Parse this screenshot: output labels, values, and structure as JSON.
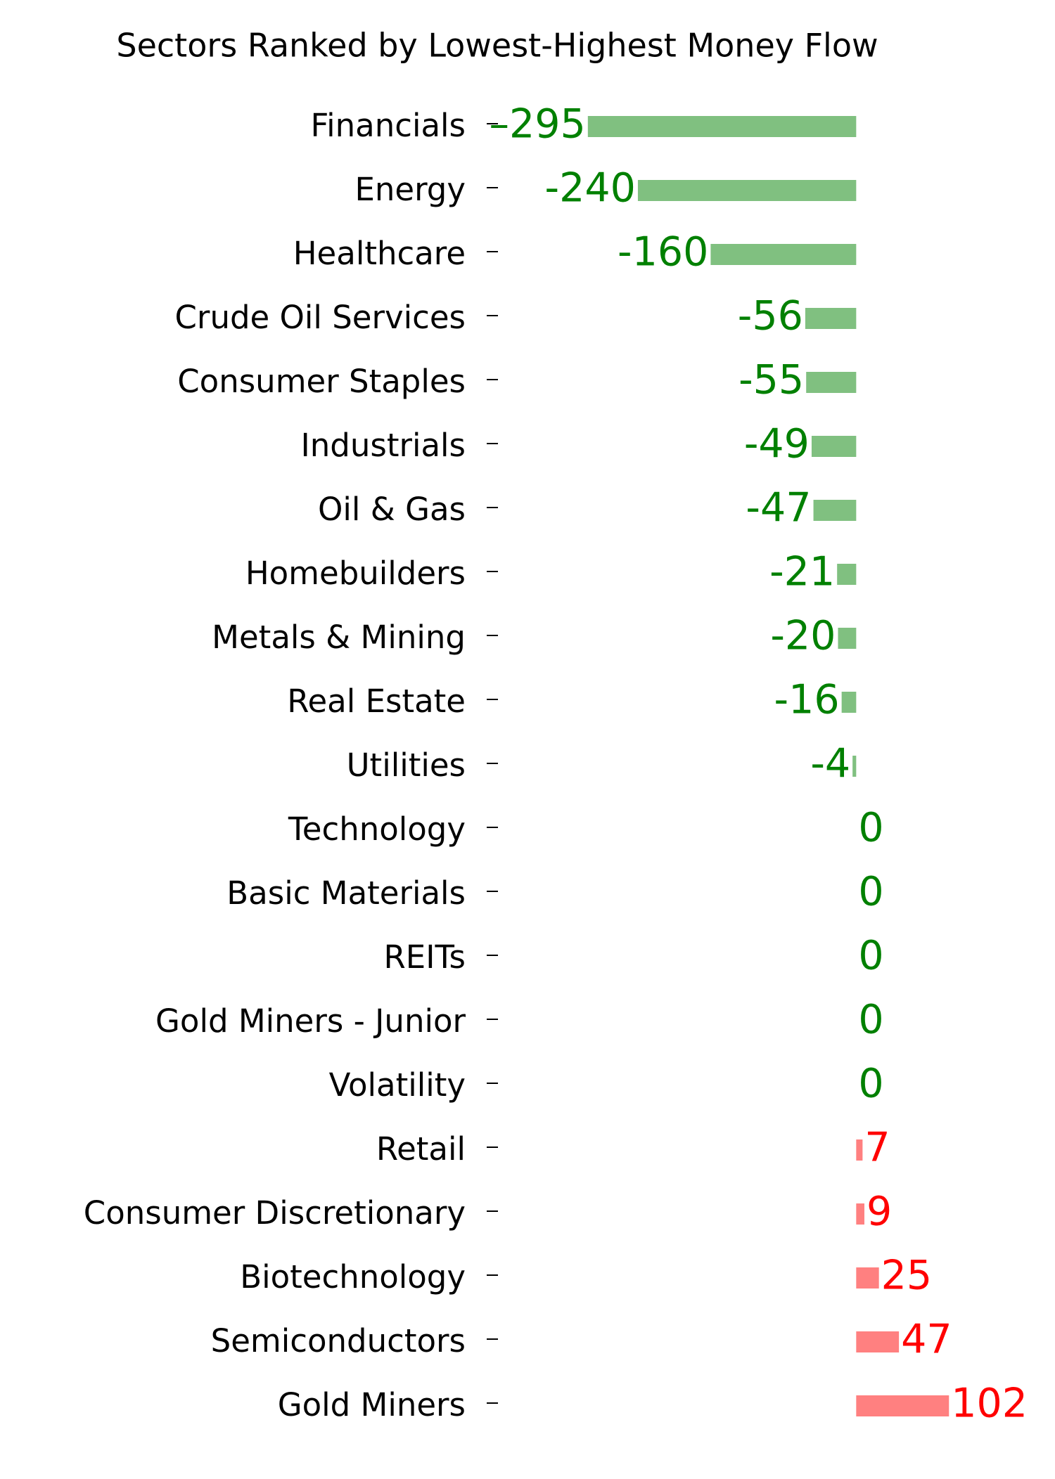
{
  "chart_data": {
    "type": "barh",
    "title": "Sectors Ranked by Lowest-Highest Money Flow",
    "categories": [
      "Financials",
      "Energy",
      "Healthcare",
      "Crude Oil Services",
      "Consumer Staples",
      "Industrials",
      "Oil & Gas",
      "Homebuilders",
      "Metals & Mining",
      "Real Estate",
      "Utilities",
      "Technology",
      "Basic Materials",
      "REITs",
      "Gold Miners - Junior",
      "Volatility",
      "Retail",
      "Consumer Discretionary",
      "Biotechnology",
      "Semiconductors",
      "Gold Miners"
    ],
    "values": [
      -295,
      -240,
      -160,
      -56,
      -55,
      -49,
      -47,
      -21,
      -20,
      -16,
      -4,
      0,
      0,
      0,
      0,
      0,
      7,
      9,
      25,
      47,
      102
    ],
    "value_labels": [
      "–295",
      "-240",
      "-160",
      "-56",
      "-55",
      "-49",
      "-47",
      "-21",
      "-20",
      "-16",
      "-4",
      "0",
      "0",
      "0",
      "0",
      "0",
      "7",
      "9",
      "25",
      "47",
      "102"
    ],
    "negative_color": "#80c080",
    "positive_color": "#ff8080",
    "negative_label_color": "#008000",
    "positive_label_color": "#ff0000",
    "xlim": [
      -400,
      200
    ]
  }
}
